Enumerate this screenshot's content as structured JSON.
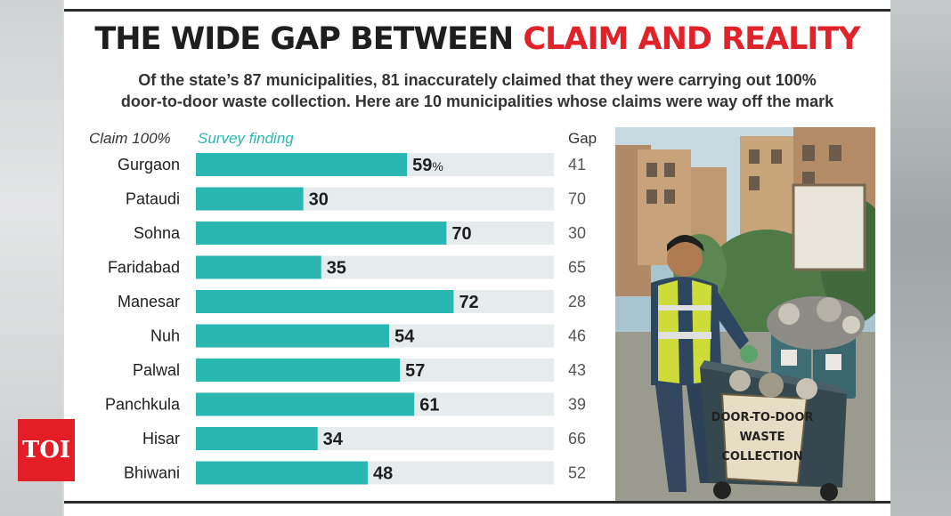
{
  "headline": {
    "part1": "THE WIDE GAP BETWEEN",
    "part2": "CLAIM AND REALITY"
  },
  "subtitle": {
    "line1": "Of the state’s 87 municipalities, 81 inaccurately claimed that they were carrying out 100%",
    "line2": "door-to-door waste collection. Here are 10 municipalities whose claims were way off the mark"
  },
  "columns": {
    "claim": "Claim 100%",
    "survey": "Survey finding",
    "gap": "Gap"
  },
  "colors": {
    "bar": "#2ab7b1",
    "track": "#e6ecee",
    "accent": "#e0232a",
    "text": "#1e1e1e"
  },
  "chart_data": {
    "type": "bar",
    "orientation": "horizontal",
    "categories": [
      "Gurgaon",
      "Pataudi",
      "Sohna",
      "Faridabad",
      "Manesar",
      "Nuh",
      "Palwal",
      "Panchkula",
      "Hisar",
      "Bhiwani"
    ],
    "series": [
      {
        "values": [
          59,
          30,
          70,
          35,
          72,
          54,
          57,
          61,
          34,
          48
        ]
      }
    ],
    "value_labels": [
      "59",
      "30",
      "70",
      "35",
      "72",
      "54",
      "57",
      "61",
      "34",
      "48"
    ],
    "first_label_suffix": "%",
    "gap": [
      "41",
      "70",
      "30",
      "65",
      "28",
      "46",
      "43",
      "39",
      "66",
      "52"
    ],
    "xlim": [
      0,
      100
    ]
  },
  "illustration": {
    "sign": "DOOR-TO-DOOR WASTE COLLECTION",
    "sign_lines": [
      "DOOR-TO-DOOR",
      "WASTE",
      "COLLECTION"
    ]
  },
  "brand": {
    "logo": "TOI"
  }
}
